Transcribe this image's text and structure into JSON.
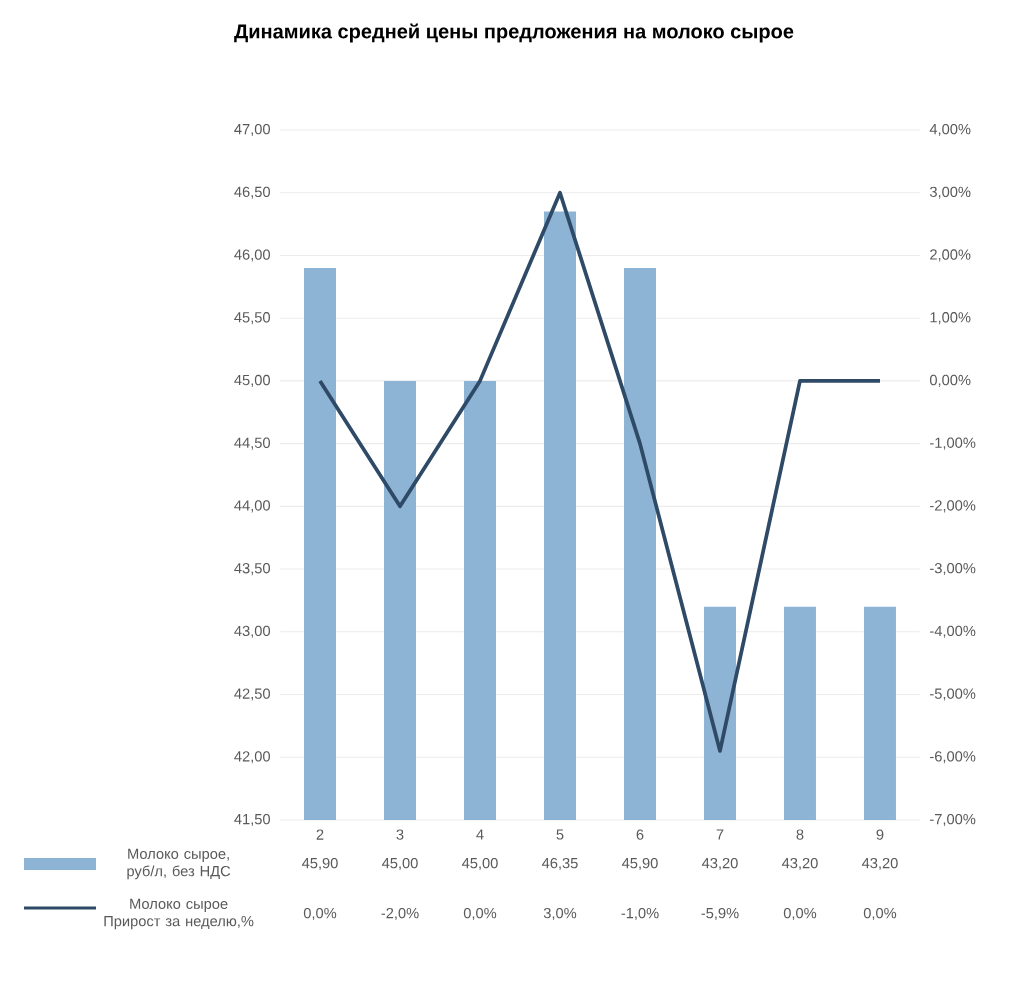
{
  "chart_data": {
    "type": "bar",
    "title": "Динамика средней цены предложения на молоко сырое",
    "categories": [
      "2",
      "3",
      "4",
      "5",
      "6",
      "7",
      "8",
      "9"
    ],
    "series": [
      {
        "name": "Молоко сырое, руб/л, без НДС",
        "color": "#8db3d5",
        "values": [
          45.9,
          45.0,
          45.0,
          46.35,
          45.9,
          43.2,
          43.2,
          43.2
        ],
        "value_labels": [
          "45,90",
          "45,00",
          "45,00",
          "46,35",
          "45,90",
          "43,20",
          "43,20",
          "43,20"
        ]
      },
      {
        "name": "Молоко сырое Прирост за неделю,%",
        "type": "line",
        "axis": "y2",
        "color": "#2e4a66",
        "values": [
          0.0,
          -2.0,
          0.0,
          3.0,
          -1.0,
          -5.9,
          0.0,
          0.0
        ],
        "value_labels": [
          "0,0%",
          "-2,0%",
          "0,0%",
          "3,0%",
          "-1,0%",
          "-5,9%",
          "0,0%",
          "0,0%"
        ]
      }
    ],
    "ylim": [
      41.5,
      47
    ],
    "yticks": [
      {
        "value": 41.5,
        "label": "41,50"
      },
      {
        "value": 42,
        "label": "42,00"
      },
      {
        "value": 42.5,
        "label": "42,50"
      },
      {
        "value": 43,
        "label": "43,00"
      },
      {
        "value": 43.5,
        "label": "43,50"
      },
      {
        "value": 44,
        "label": "44,00"
      },
      {
        "value": 44.5,
        "label": "44,50"
      },
      {
        "value": 45,
        "label": "45,00"
      },
      {
        "value": 45.5,
        "label": "45,50"
      },
      {
        "value": 46,
        "label": "46,00"
      },
      {
        "value": 46.5,
        "label": "46,50"
      },
      {
        "value": 47,
        "label": "47,00"
      }
    ],
    "y2lim": [
      -7,
      4
    ],
    "y2ticks": [
      {
        "value": -7,
        "label": "-7,00%"
      },
      {
        "value": -6,
        "label": "-6,00%"
      },
      {
        "value": -5,
        "label": "-5,00%"
      },
      {
        "value": -4,
        "label": "-4,00%"
      },
      {
        "value": -3,
        "label": "-3,00%"
      },
      {
        "value": -2,
        "label": "-2,00%"
      },
      {
        "value": -1,
        "label": "-1,00%"
      },
      {
        "value": 0,
        "label": "0,00%"
      },
      {
        "value": 1,
        "label": "1,00%"
      },
      {
        "value": 2,
        "label": "2,00%"
      },
      {
        "value": 3,
        "label": "3,00%"
      },
      {
        "value": 4,
        "label": "4,00%"
      }
    ],
    "grid": "y",
    "legend": "bottom",
    "marker": "none",
    "line_style": "solid"
  }
}
